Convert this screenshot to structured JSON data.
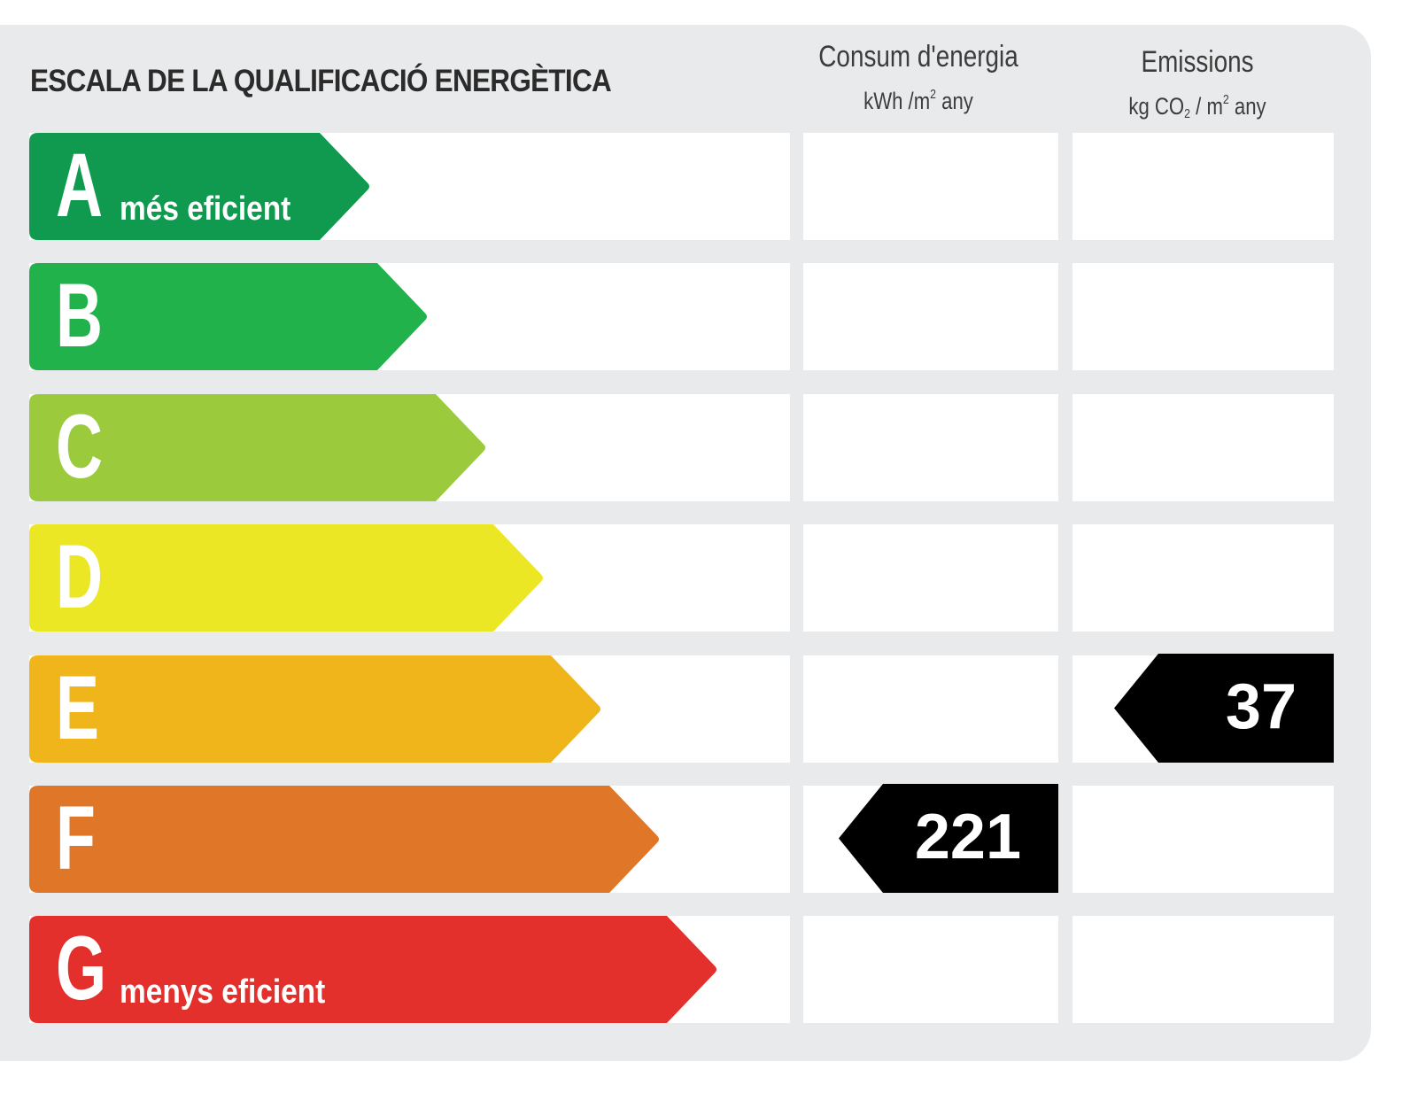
{
  "title": "ESCALA DE LA QUALIFICACIÓ ENERGÈTICA",
  "columns": {
    "energy": {
      "heading": "Consum d'energia",
      "unit_main": "kWh /m",
      "unit_sup": "2",
      "unit_tail": " any"
    },
    "emissions": {
      "heading": "Emissions",
      "unit_a": "kg CO",
      "unit_sub": "2",
      "unit_b": " / m",
      "unit_sup": "2",
      "unit_tail": " any"
    }
  },
  "bands": [
    {
      "letter": "A",
      "note": "més eficient",
      "color": "#109a4f"
    },
    {
      "letter": "B",
      "note": "",
      "color": "#21b24b"
    },
    {
      "letter": "C",
      "note": "",
      "color": "#9bca3c"
    },
    {
      "letter": "D",
      "note": "",
      "color": "#ebe724"
    },
    {
      "letter": "E",
      "note": "",
      "color": "#f0b51a"
    },
    {
      "letter": "F",
      "note": "",
      "color": "#e07628"
    },
    {
      "letter": "G",
      "note": "menys eficient",
      "color": "#e3302c"
    }
  ],
  "ratings": {
    "energy": {
      "value": "221",
      "band": "F"
    },
    "emissions": {
      "value": "37",
      "band": "E"
    }
  },
  "indicator_color": "#000000"
}
